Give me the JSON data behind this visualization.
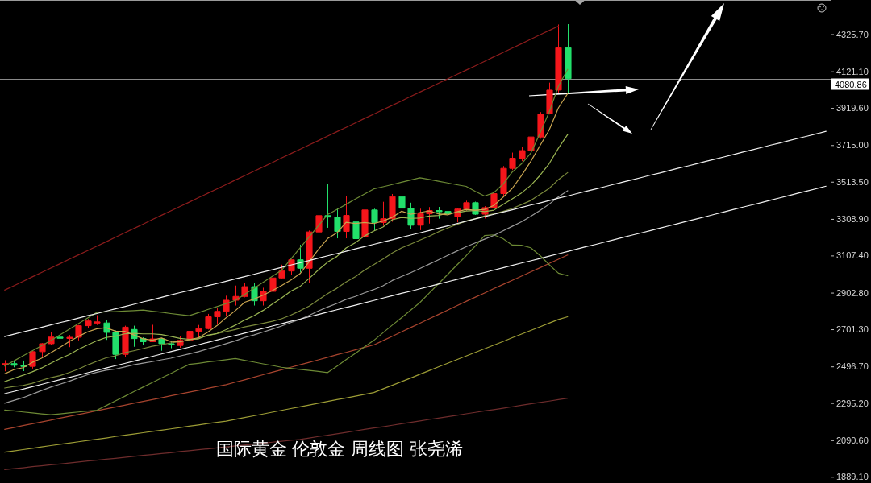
{
  "chart_data": {
    "type": "candlestick",
    "categories": [
      null,
      null,
      null,
      null,
      null,
      null,
      null,
      null,
      null,
      null,
      null,
      null,
      null,
      null,
      null,
      null,
      null,
      null,
      null,
      null,
      null,
      null,
      null,
      null,
      null,
      null,
      null,
      null,
      null,
      null,
      null,
      null,
      null,
      null,
      null,
      null,
      null,
      null,
      null,
      null,
      null,
      null,
      null,
      null,
      null,
      null,
      null,
      null,
      null,
      null,
      null,
      null,
      null,
      null,
      null,
      null,
      null,
      null,
      null,
      null,
      null,
      null,
      null,
      null,
      null,
      null,
      null,
      null,
      null,
      null,
      null,
      null,
      null,
      null,
      null,
      null,
      null,
      null,
      null,
      null,
      null,
      null,
      null,
      null,
      null,
      null,
      null,
      null,
      null,
      null
    ],
    "ohlc": [
      [
        2508,
        2531,
        2470,
        2512
      ],
      [
        2512,
        2525,
        2492,
        2503
      ],
      [
        2503,
        2529,
        2471,
        2497
      ],
      [
        2497,
        2586,
        2485,
        2578
      ],
      [
        2578,
        2625,
        2546,
        2622
      ],
      [
        2622,
        2685,
        2616,
        2658
      ],
      [
        2658,
        2670,
        2625,
        2653
      ],
      [
        2653,
        2670,
        2603,
        2657
      ],
      [
        2657,
        2725,
        2640,
        2721
      ],
      [
        2721,
        2758,
        2708,
        2747
      ],
      [
        2738,
        2779,
        2725,
        2742
      ],
      [
        2736,
        2750,
        2643,
        2684
      ],
      [
        2684,
        2695,
        2537,
        2563
      ],
      [
        2563,
        2721,
        2550,
        2713
      ],
      [
        2700,
        2721,
        2605,
        2650
      ],
      [
        2650,
        2657,
        2613,
        2633
      ],
      [
        2633,
        2726,
        2631,
        2648
      ],
      [
        2648,
        2653,
        2583,
        2622
      ],
      [
        2622,
        2639,
        2597,
        2618
      ],
      [
        2612,
        2665,
        2600,
        2640
      ],
      [
        2640,
        2697,
        2635,
        2690
      ],
      [
        2690,
        2725,
        2657,
        2705
      ],
      [
        2705,
        2786,
        2700,
        2770
      ],
      [
        2770,
        2817,
        2730,
        2800
      ],
      [
        2800,
        2886,
        2772,
        2861
      ],
      [
        2861,
        2942,
        2832,
        2882
      ],
      [
        2882,
        2955,
        2877,
        2936
      ],
      [
        2936,
        2956,
        2832,
        2858
      ],
      [
        2858,
        2930,
        2832,
        2910
      ],
      [
        2910,
        3004,
        2880,
        2984
      ],
      [
        2984,
        3057,
        2981,
        3022
      ],
      [
        3022,
        3086,
        3000,
        3084
      ],
      [
        3084,
        3167,
        3015,
        3037
      ],
      [
        3037,
        3245,
        2957,
        3237
      ],
      [
        3237,
        3357,
        3193,
        3327
      ],
      [
        3327,
        3500,
        3260,
        3319
      ],
      [
        3319,
        3367,
        3202,
        3240
      ],
      [
        3240,
        3435,
        3202,
        3328
      ],
      [
        3292,
        3300,
        3120,
        3200
      ],
      [
        3210,
        3365,
        3205,
        3358
      ],
      [
        3358,
        3365,
        3245,
        3289
      ],
      [
        3289,
        3403,
        3271,
        3310
      ],
      [
        3310,
        3446,
        3293,
        3432
      ],
      [
        3432,
        3452,
        3340,
        3368
      ],
      [
        3368,
        3398,
        3255,
        3274
      ],
      [
        3274,
        3365,
        3247,
        3337
      ],
      [
        3337,
        3374,
        3283,
        3355
      ],
      [
        3355,
        3375,
        3310,
        3350
      ],
      [
        3350,
        3438,
        3324,
        3337
      ],
      [
        3320,
        3370,
        3290,
        3363
      ],
      [
        3363,
        3409,
        3354,
        3398
      ],
      [
        3398,
        3404,
        3331,
        3335
      ],
      [
        3335,
        3379,
        3311,
        3371
      ],
      [
        3371,
        3453,
        3351,
        3448
      ],
      [
        3448,
        3600,
        3436,
        3587
      ],
      [
        3587,
        3674,
        3578,
        3643
      ],
      [
        3643,
        3707,
        3627,
        3685
      ],
      [
        3685,
        3791,
        3684,
        3760
      ],
      [
        3760,
        3897,
        3750,
        3886
      ],
      [
        3887,
        4059,
        3884,
        4018
      ],
      [
        4018,
        4379,
        4000,
        4251
      ],
      [
        4251,
        4381,
        4004,
        4080.86
      ],
      null,
      null,
      null,
      null,
      null,
      null,
      null,
      null,
      null,
      null,
      null,
      null,
      null,
      null,
      null,
      null,
      null,
      null,
      null,
      null,
      null,
      null,
      null,
      null,
      null,
      null,
      null,
      null
    ],
    "colors": [
      "#f5161b",
      "#22e06b",
      "#22e06b",
      "#f5161b",
      "#f5161b",
      "#f5161b",
      "#22e06b",
      "#f5161b",
      "#f5161b",
      "#f5161b",
      "#f5161b",
      "#22e06b",
      "#22e06b",
      "#f5161b",
      "#22e06b",
      "#22e06b",
      "#f5161b",
      "#22e06b",
      "#22e06b",
      "#f5161b",
      "#f5161b",
      "#f5161b",
      "#f5161b",
      "#f5161b",
      "#f5161b",
      "#f5161b",
      "#f5161b",
      "#22e06b",
      "#f5161b",
      "#f5161b",
      "#f5161b",
      "#f5161b",
      "#22e06b",
      "#f5161b",
      "#f5161b",
      "#22e06b",
      "#22e06b",
      "#f5161b",
      "#22e06b",
      "#f5161b",
      "#22e06b",
      "#f5161b",
      "#f5161b",
      "#22e06b",
      "#22e06b",
      "#f5161b",
      "#f5161b",
      "#22e06b",
      "#22e06b",
      "#f5161b",
      "#f5161b",
      "#22e06b",
      "#f5161b",
      "#f5161b",
      "#f5161b",
      "#f5161b",
      "#f5161b",
      "#f5161b",
      "#f5161b",
      "#f5161b",
      "#f5161b",
      "#22e06b",
      null,
      null,
      null,
      null,
      null,
      null,
      null,
      null,
      null,
      null,
      null,
      null,
      null,
      null,
      null,
      null,
      null,
      null,
      null,
      null,
      null,
      null,
      null,
      null,
      null,
      null,
      null,
      null
    ],
    "series": [
      {
        "type": "line",
        "color": "#6e2c2c",
        "values": [
          1929,
          1934,
          1939,
          1945,
          1950,
          1955,
          1960,
          1965,
          1971,
          1976,
          1981,
          1986,
          1991,
          1996,
          2002,
          2007,
          2012,
          2017,
          2022,
          2028,
          2033,
          2038,
          2043,
          2048,
          2054,
          2059,
          2064,
          2069,
          2074,
          2080,
          2085,
          2090,
          2095,
          2103,
          2111,
          2118,
          2126,
          2134,
          2142,
          2150,
          2158,
          2165,
          2173,
          2181,
          2189,
          2197,
          2205,
          2212,
          2220,
          2228,
          2236,
          2244,
          2252,
          2259,
          2267,
          2275,
          2283,
          2291,
          2299,
          2306,
          2314,
          2322,
          null,
          null,
          null,
          null,
          null,
          null,
          null,
          null,
          null,
          null,
          null,
          null,
          null,
          null,
          null,
          null,
          null,
          null,
          null,
          null,
          null,
          null,
          null,
          null,
          null,
          null,
          null,
          null
        ]
      },
      {
        "type": "line",
        "color": "#9c9c35",
        "values": [
          2025,
          2032,
          2039,
          2046,
          2054,
          2061,
          2068,
          2075,
          2082,
          2089,
          2096,
          2103,
          2111,
          2118,
          2125,
          2132,
          2139,
          2146,
          2153,
          2160,
          2168,
          2175,
          2182,
          2189,
          2196,
          2206,
          2216,
          2225,
          2235,
          2245,
          2255,
          2265,
          2274,
          2284,
          2294,
          2304,
          2314,
          2323,
          2333,
          2343,
          2353,
          2373,
          2393,
          2413,
          2433,
          2454,
          2474,
          2494,
          2514,
          2534,
          2554,
          2574,
          2594,
          2614,
          2634,
          2655,
          2675,
          2695,
          2715,
          2735,
          2755,
          2770,
          null,
          null,
          null,
          null,
          null,
          null,
          null,
          null,
          null,
          null,
          null,
          null,
          null,
          null,
          null,
          null,
          null,
          null,
          null,
          null,
          null,
          null,
          null,
          null,
          null,
          null,
          null,
          null
        ]
      },
      {
        "type": "line",
        "color": "#a8442e",
        "values": [
          2150,
          2160,
          2171,
          2181,
          2191,
          2201,
          2212,
          2222,
          2232,
          2242,
          2253,
          2263,
          2273,
          2283,
          2294,
          2304,
          2314,
          2324,
          2335,
          2345,
          2355,
          2365,
          2376,
          2386,
          2396,
          2410,
          2423,
          2437,
          2451,
          2465,
          2478,
          2492,
          2506,
          2519,
          2533,
          2547,
          2561,
          2574,
          2588,
          2602,
          2615,
          2639,
          2663,
          2687,
          2711,
          2735,
          2759,
          2783,
          2807,
          2831,
          2855,
          2878,
          2901,
          2925,
          2948,
          2971,
          2994,
          3017,
          3040,
          3064,
          3087,
          3110,
          null,
          null,
          null,
          null,
          null,
          null,
          null,
          null,
          null,
          null,
          null,
          null,
          null,
          null,
          null,
          null,
          null,
          null,
          null,
          null,
          null,
          null,
          null,
          null,
          null,
          null,
          null,
          null
        ]
      },
      {
        "type": "line",
        "color": "#6d8a35",
        "values": [
          2257,
          2252,
          2246,
          2241,
          2236,
          2231,
          2236,
          2241,
          2246,
          2251,
          2256,
          2281,
          2307,
          2332,
          2358,
          2383,
          2408,
          2433,
          2458,
          2483,
          2508,
          2514,
          2521,
          2527,
          2534,
          2540,
          2530,
          2521,
          2511,
          2502,
          2492,
          2486,
          2480,
          2475,
          2469,
          2463,
          2498,
          2534,
          2569,
          2605,
          2640,
          2682,
          2724,
          2765,
          2807,
          2849,
          2900,
          2952,
          3003,
          3055,
          3106,
          3160,
          3217,
          3221,
          3200,
          3165,
          3164,
          3150,
          3108,
          3057,
          3010,
          2996,
          null,
          null,
          null,
          null,
          null,
          null,
          null,
          null,
          null,
          null,
          null,
          null,
          null,
          null,
          null,
          null,
          null,
          null,
          null,
          null,
          null,
          null,
          null,
          null,
          null,
          null,
          null,
          null
        ]
      },
      {
        "type": "line",
        "color": "#6d8a35",
        "values": [
          2499,
          2527,
          2555,
          2583,
          2611,
          2639,
          2670,
          2701,
          2732,
          2763,
          2794,
          2797,
          2799,
          2802,
          2804,
          2807,
          2801,
          2795,
          2788,
          2782,
          2776,
          2793,
          2810,
          2826,
          2843,
          2860,
          2893,
          2926,
          2960,
          2993,
          3026,
          3087,
          3149,
          3210,
          3272,
          3333,
          3361,
          3389,
          3418,
          3446,
          3474,
          3486,
          3498,
          3511,
          3523,
          3535,
          3526,
          3516,
          3507,
          3497,
          3488,
          3460,
          3435,
          3453,
          3500,
          3567,
          3612,
          3670,
          3780,
          3897,
          4040,
          4132,
          null,
          null,
          null,
          null,
          null,
          null,
          null,
          null,
          null,
          null,
          null,
          null,
          null,
          null,
          null,
          null,
          null,
          null,
          null,
          null,
          null,
          null,
          null,
          null,
          null,
          null,
          null,
          null
        ]
      },
      {
        "type": "line",
        "color": "#9a9a9a",
        "values": [
          2294,
          2310,
          2325,
          2344,
          2364,
          2383,
          2399,
          2415,
          2434,
          2451,
          2465,
          2476,
          2482,
          2494,
          2506,
          2515,
          2523,
          2533,
          2542,
          2554,
          2566,
          2578,
          2593,
          2607,
          2622,
          2638,
          2656,
          2670,
          2686,
          2702,
          2719,
          2738,
          2756,
          2778,
          2802,
          2824,
          2843,
          2866,
          2882,
          2902,
          2920,
          2941,
          2970,
          2992,
          3013,
          3036,
          3060,
          3084,
          3108,
          3132,
          3156,
          3177,
          3197,
          3218,
          3243,
          3268,
          3293,
          3323,
          3355,
          3390,
          3431,
          3464,
          null,
          null,
          null,
          null,
          null,
          null,
          null,
          null,
          null,
          null,
          null,
          null,
          null,
          null,
          null,
          null,
          null,
          null,
          null,
          null,
          null,
          null,
          null,
          null,
          null,
          null,
          null,
          null
        ]
      },
      {
        "type": "line",
        "color": "#7b8a3c",
        "values": [
          2378,
          2386,
          2392,
          2404,
          2420,
          2435,
          2446,
          2463,
          2482,
          2505,
          2525,
          2544,
          2555,
          2572,
          2583,
          2595,
          2608,
          2617,
          2626,
          2633,
          2642,
          2652,
          2666,
          2677,
          2689,
          2700,
          2714,
          2724,
          2734,
          2745,
          2759,
          2779,
          2803,
          2829,
          2863,
          2898,
          2927,
          2962,
          2991,
          3027,
          3057,
          3088,
          3121,
          3149,
          3170,
          3192,
          3213,
          3238,
          3259,
          3278,
          3297,
          3310,
          3326,
          3337,
          3350,
          3366,
          3388,
          3410,
          3444,
          3477,
          3525,
          3564,
          null,
          null,
          null,
          null,
          null,
          null,
          null,
          null,
          null,
          null,
          null,
          null,
          null,
          null,
          null,
          null,
          null,
          null,
          null,
          null,
          null,
          null,
          null,
          null,
          null,
          null,
          null,
          null
        ]
      },
      {
        "type": "line",
        "color": "#9ab552",
        "values": [
          2413,
          2431,
          2448,
          2467,
          2488,
          2514,
          2540,
          2562,
          2591,
          2615,
          2638,
          2656,
          2663,
          2676,
          2679,
          2676,
          2676,
          2672,
          2662,
          2651,
          2646,
          2648,
          2669,
          2678,
          2699,
          2724,
          2752,
          2776,
          2805,
          2840,
          2873,
          2911,
          2937,
          2981,
          3028,
          3071,
          3102,
          3149,
          3178,
          3215,
          3242,
          3264,
          3304,
          3317,
          3312,
          3314,
          3325,
          3328,
          3341,
          3342,
          3352,
          3355,
          3349,
          3357,
          3388,
          3419,
          3452,
          3493,
          3548,
          3613,
          3698,
          3773,
          null,
          null,
          null,
          null,
          null,
          null,
          null,
          null,
          null,
          null,
          null,
          null,
          null,
          null,
          null,
          null,
          null,
          null,
          null,
          null,
          null,
          null,
          null,
          null,
          null,
          null,
          null,
          null
        ]
      },
      {
        "type": "line",
        "color": "#caa550",
        "values": [
          2456,
          2479,
          2490,
          2519,
          2542,
          2572,
          2602,
          2634,
          2662,
          2687,
          2704,
          2710,
          2691,
          2690,
          2670,
          2649,
          2641,
          2653,
          2634,
          2632,
          2644,
          2655,
          2685,
          2721,
          2765,
          2804,
          2850,
          2867,
          2889,
          2914,
          2942,
          2972,
          3007,
          3073,
          3141,
          3201,
          3232,
          3290,
          3283,
          3289,
          3283,
          3297,
          3318,
          3351,
          3335,
          3344,
          3353,
          3337,
          3331,
          3348,
          3361,
          3357,
          3361,
          3383,
          3428,
          3477,
          3547,
          3625,
          3712,
          3798,
          3920,
          3999,
          null,
          null,
          null,
          null,
          null,
          null,
          null,
          null,
          null,
          null,
          null,
          null,
          null,
          null,
          null,
          null,
          null,
          null,
          null,
          null,
          null,
          null,
          null,
          null,
          null,
          null,
          null,
          null
        ]
      },
      {
        "type": "line",
        "color": "#8c1c1c",
        "values": [
          2917,
          2941,
          2965,
          2990,
          3014,
          3038,
          3062,
          3087,
          3111,
          3135,
          3159,
          3183,
          3208,
          3232,
          3256,
          3280,
          3305,
          3329,
          3353,
          3377,
          3401,
          3426,
          3450,
          3474,
          3498,
          3523,
          3547,
          3571,
          3595,
          3619,
          3644,
          3668,
          3692,
          3716,
          3740,
          3765,
          3789,
          3813,
          3837,
          3862,
          3886,
          3910,
          3934,
          3958,
          3983,
          4007,
          4031,
          4055,
          4080,
          4104,
          4128,
          4152,
          4176,
          4201,
          4225,
          4249,
          4273,
          4298,
          4322,
          4346,
          4370,
          null,
          null,
          null,
          null,
          null,
          null,
          null,
          null,
          null,
          null,
          null,
          null,
          null,
          null,
          null,
          null,
          null,
          null,
          null,
          null,
          null,
          null,
          null,
          null,
          null,
          null,
          null,
          null,
          null
        ]
      },
      {
        "type": "line",
        "color": "#f0f0f0",
        "values": [
          2661,
          2674,
          2687,
          2699,
          2712,
          2725,
          2738,
          2750,
          2763,
          2776,
          2788,
          2801,
          2814,
          2826,
          2839,
          2852,
          2864,
          2877,
          2890,
          2903,
          2915,
          2928,
          2941,
          2953,
          2966,
          2979,
          2991,
          3004,
          3017,
          3029,
          3042,
          3055,
          3067,
          3080,
          3093,
          3106,
          3118,
          3131,
          3144,
          3156,
          3169,
          3182,
          3194,
          3207,
          3220,
          3232,
          3245,
          3258,
          3270,
          3283,
          3296,
          3309,
          3321,
          3334,
          3347,
          3359,
          3372,
          3385,
          3397,
          3410,
          3423,
          3435,
          3448,
          3461,
          3473,
          3486,
          3499,
          3512,
          3524,
          3537,
          3550,
          3562,
          3575,
          3588,
          3600,
          3613,
          3626,
          3638,
          3651,
          3664,
          3677,
          3689,
          3702,
          3715,
          3727,
          3740,
          3753,
          3765,
          3778,
          3791
        ]
      },
      {
        "type": "line",
        "color": "#f0f0f0",
        "values": [
          2347,
          2359,
          2372,
          2385,
          2398,
          2411,
          2424,
          2436,
          2449,
          2462,
          2475,
          2488,
          2501,
          2513,
          2526,
          2539,
          2552,
          2565,
          2578,
          2590,
          2603,
          2616,
          2629,
          2642,
          2655,
          2667,
          2680,
          2693,
          2706,
          2719,
          2732,
          2745,
          2757,
          2770,
          2783,
          2796,
          2809,
          2822,
          2834,
          2847,
          2860,
          2873,
          2886,
          2899,
          2911,
          2924,
          2937,
          2950,
          2963,
          2976,
          2989,
          3001,
          3014,
          3027,
          3040,
          3053,
          3066,
          3078,
          3091,
          3104,
          3117,
          3130,
          3143,
          3156,
          3168,
          3181,
          3194,
          3207,
          3220,
          3232,
          3245,
          3258,
          3271,
          3284,
          3297,
          3309,
          3322,
          3335,
          3348,
          3361,
          3374,
          3386,
          3399,
          3412,
          3425,
          3438,
          3451,
          3463,
          3476,
          3489
        ]
      }
    ],
    "ylim": [
      1855,
      4514
    ],
    "yticks": [
      {
        "value": 4325.7,
        "label": "4325.70"
      },
      {
        "value": 4121.1,
        "label": "4121.10"
      },
      {
        "value": 3919.6,
        "label": "3919.60"
      },
      {
        "value": 3715,
        "label": "3715.00"
      },
      {
        "value": 3513.5,
        "label": "3513.50"
      },
      {
        "value": 3308.9,
        "label": "3308.90"
      },
      {
        "value": 3107.4,
        "label": "3107.40"
      },
      {
        "value": 2902.8,
        "label": "2902.80"
      },
      {
        "value": 2701.3,
        "label": "2701.30"
      },
      {
        "value": 2496.7,
        "label": "2496.70"
      },
      {
        "value": 2295.2,
        "label": "2295.20"
      },
      {
        "value": 2090.6,
        "label": "2090.60"
      },
      {
        "value": 1889.1,
        "label": "1889.10"
      }
    ],
    "tick_labels": "y",
    "ref_lines": [
      {
        "axis": "y",
        "value": 4080.86,
        "label": "4080.86",
        "color": "#8a8a8a"
      }
    ],
    "annotations": [
      "国际黄金 伦敦金 周线图 张尧浠"
    ]
  }
}
